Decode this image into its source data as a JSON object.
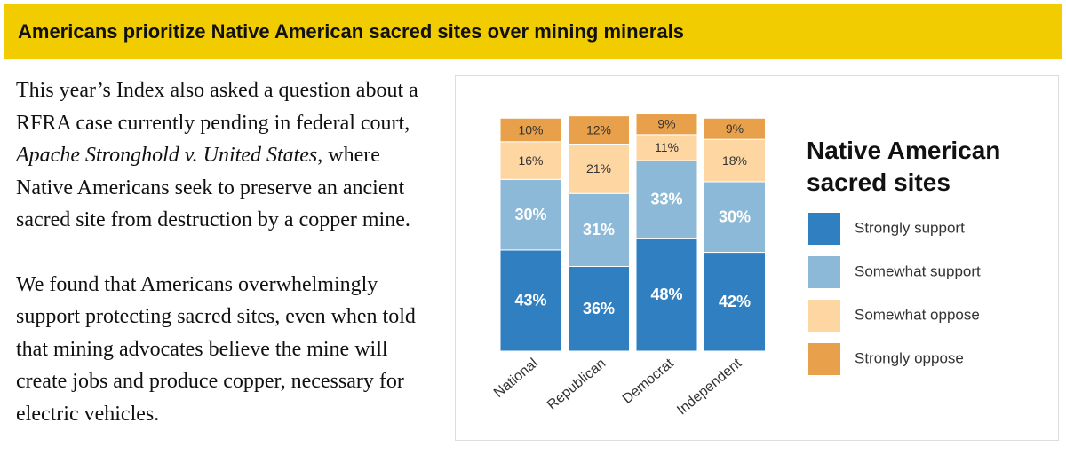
{
  "header": {
    "title": "Americans prioritize Native American sacred sites over mining minerals"
  },
  "body": {
    "paragraphs": [
      [
        "This year’s Index also asked a question about a RFRA case currently pending in federal court, ",
        "Apache Stronghold v. United States",
        ", where Native Americans seek to preserve an ancient sacred site from destruction by a copper mine."
      ],
      [
        "We found that Americans overwhelmingly support protecting sacred sites, even when told that mining advocates believe the mine will create jobs and produce copper, necessary for electric vehicles."
      ]
    ]
  },
  "chart_data": {
    "type": "stacked-bar",
    "legend_title": "Native American sacred sites",
    "categories": [
      "National",
      "Republican",
      "Democrat",
      "Independent"
    ],
    "series": [
      {
        "name": "Strongly support",
        "color": "#2f7fc1",
        "values": [
          43,
          36,
          48,
          42
        ],
        "value_labels": [
          "43%",
          "36%",
          "48%",
          "42%"
        ]
      },
      {
        "name": "Somewhat support",
        "color": "#8cb9d7",
        "values": [
          30,
          31,
          33,
          30
        ],
        "value_labels": [
          "30%",
          "31%",
          "33%",
          "30%"
        ]
      },
      {
        "name": "Somewhat oppose",
        "color": "#fdd6a2",
        "values": [
          16,
          21,
          11,
          18
        ],
        "value_labels": [
          "16%",
          "21%",
          "11%",
          "18%"
        ]
      },
      {
        "name": "Strongly oppose",
        "color": "#e8a04b",
        "values": [
          10,
          12,
          9,
          9
        ],
        "value_labels": [
          "10%",
          "12%",
          "9%",
          "9%"
        ]
      }
    ]
  }
}
